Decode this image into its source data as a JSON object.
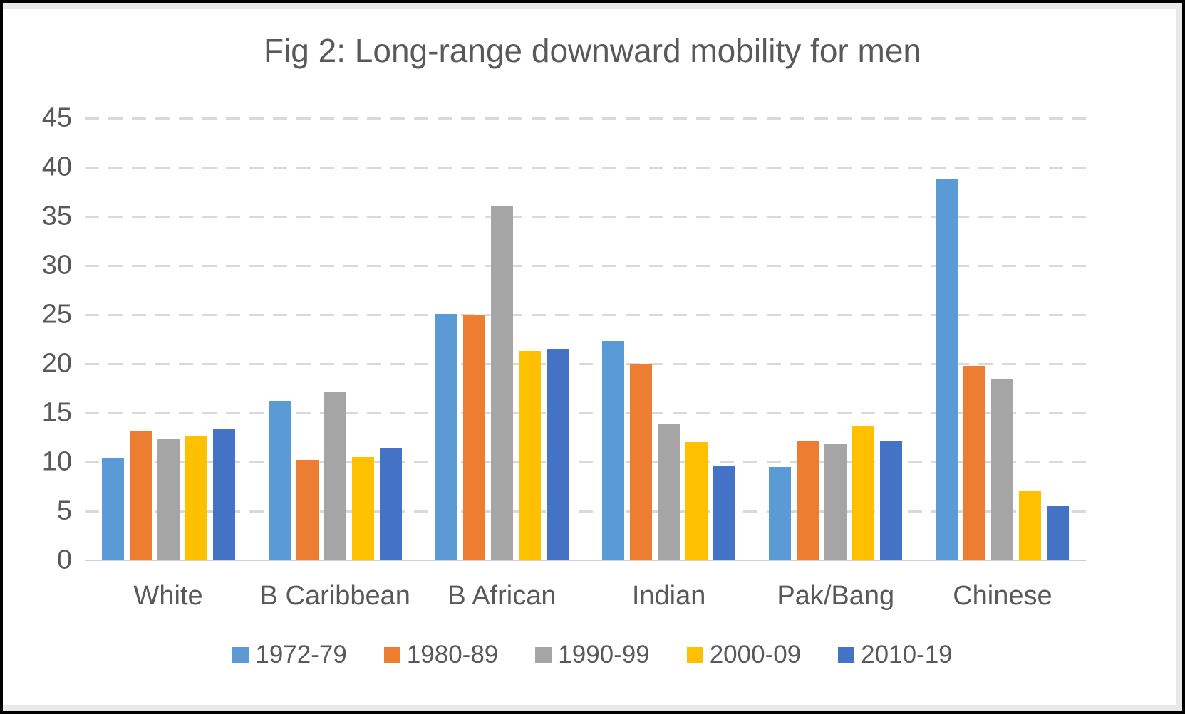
{
  "figure": {
    "title": "Fig 2: Long-range downward mobility for men"
  },
  "chart_data": {
    "type": "bar",
    "title": "Fig 2: Long-range downward mobility for men",
    "categories": [
      "White",
      "B Caribbean",
      "B African",
      "Indian",
      "Pak/Bang",
      "Chinese"
    ],
    "series": [
      {
        "name": "1972-79",
        "color": "#5B9BD5",
        "values": [
          10.4,
          16.2,
          25.1,
          22.3,
          9.5,
          38.8
        ]
      },
      {
        "name": "1980-89",
        "color": "#ED7D31",
        "values": [
          13.2,
          10.2,
          25.0,
          20.0,
          12.2,
          19.8
        ]
      },
      {
        "name": "1990-99",
        "color": "#A5A5A5",
        "values": [
          12.4,
          17.1,
          36.1,
          13.9,
          11.8,
          18.4
        ]
      },
      {
        "name": "2000-09",
        "color": "#FFC000",
        "values": [
          12.6,
          10.5,
          21.3,
          12.0,
          13.7,
          7.0
        ]
      },
      {
        "name": "2010-19",
        "color": "#4472C4",
        "values": [
          13.3,
          11.4,
          21.5,
          9.6,
          12.1,
          5.5
        ]
      }
    ],
    "ylim": [
      0,
      45
    ],
    "ytick_step": 5,
    "ytick_labels": [
      "0",
      "5",
      "10",
      "15",
      "20",
      "25",
      "30",
      "35",
      "40",
      "45"
    ],
    "xlabel": "",
    "ylabel": "",
    "grid": "horizontal-dashed",
    "legend_position": "bottom",
    "colors": {
      "axis_text": "#595959",
      "gridline": "#D9D9D9",
      "baseline": "#CFCFCF",
      "background": "#FFFFFF",
      "frame_border": "#000000"
    }
  }
}
